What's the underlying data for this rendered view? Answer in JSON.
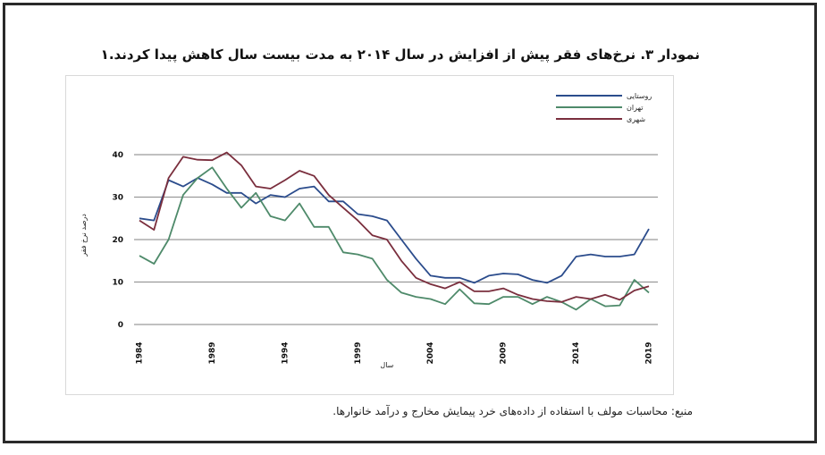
{
  "chart_data": {
    "type": "line",
    "title": "نمودار ۳. نرخ‌های فقر پیش از افزایش در سال ۲۰۱۴ به مدت بیست سال کاهش پیدا کردند.۱",
    "xlabel": "سال",
    "ylabel": "درصد نرخ فقر",
    "source": "منبع: محاسبات مولف با استفاده از داده‌های خرد پیمایش مخارج و درآمد خانوارها.",
    "xlim": [
      1984,
      2019
    ],
    "ylim": [
      0,
      40
    ],
    "y_ticks": [
      "0",
      "10",
      "20",
      "30",
      "40"
    ],
    "x_ticks": [
      "1984",
      "1989",
      "1994",
      "1999",
      "2004",
      "2009",
      "2014",
      "2019"
    ],
    "x": [
      1984,
      1985,
      1986,
      1987,
      1988,
      1989,
      1990,
      1991,
      1992,
      1993,
      1994,
      1995,
      1996,
      1997,
      1998,
      1999,
      2000,
      2001,
      2002,
      2003,
      2004,
      2005,
      2006,
      2007,
      2008,
      2009,
      2010,
      2011,
      2012,
      2013,
      2014,
      2015,
      2016,
      2017,
      2018,
      2019
    ],
    "legend_position": "top-right",
    "grid": true,
    "series": [
      {
        "name": "روستایی",
        "color": "#2b4c8c",
        "values": [
          25,
          24.5,
          34,
          32.5,
          34.5,
          33,
          31,
          31,
          28.5,
          30.5,
          30,
          32,
          32.5,
          29,
          29,
          26,
          25.5,
          24.5,
          20,
          15.5,
          11.5,
          11,
          11,
          9.8,
          11.5,
          12,
          11.8,
          10.5,
          9.8,
          11.5,
          16,
          16.5,
          16,
          16,
          16.5,
          22.5
        ]
      },
      {
        "name": "تهران",
        "color": "#4e8a6a",
        "values": [
          16.2,
          14.3,
          20,
          30.5,
          34.5,
          37,
          32,
          27.5,
          31,
          25.5,
          24.5,
          28.5,
          23,
          23,
          17,
          16.5,
          15.5,
          10.5,
          7.5,
          6.5,
          6,
          4.8,
          8.3,
          5,
          4.8,
          6.5,
          6.5,
          4.8,
          6.5,
          5.3,
          3.5,
          6,
          4.3,
          4.5,
          10.5,
          7.5
        ]
      },
      {
        "name": "شهری",
        "color": "#7a2e3d",
        "values": [
          24.5,
          22.3,
          34.5,
          39.5,
          38.8,
          38.7,
          40.5,
          37.5,
          32.5,
          32,
          34,
          36.2,
          35,
          30.5,
          27.5,
          24.5,
          21,
          20,
          15,
          11,
          9.5,
          8.5,
          10,
          7.8,
          7.8,
          8.5,
          7,
          6,
          5.5,
          5.3,
          6.5,
          6,
          7,
          5.8,
          8,
          9
        ]
      }
    ]
  }
}
